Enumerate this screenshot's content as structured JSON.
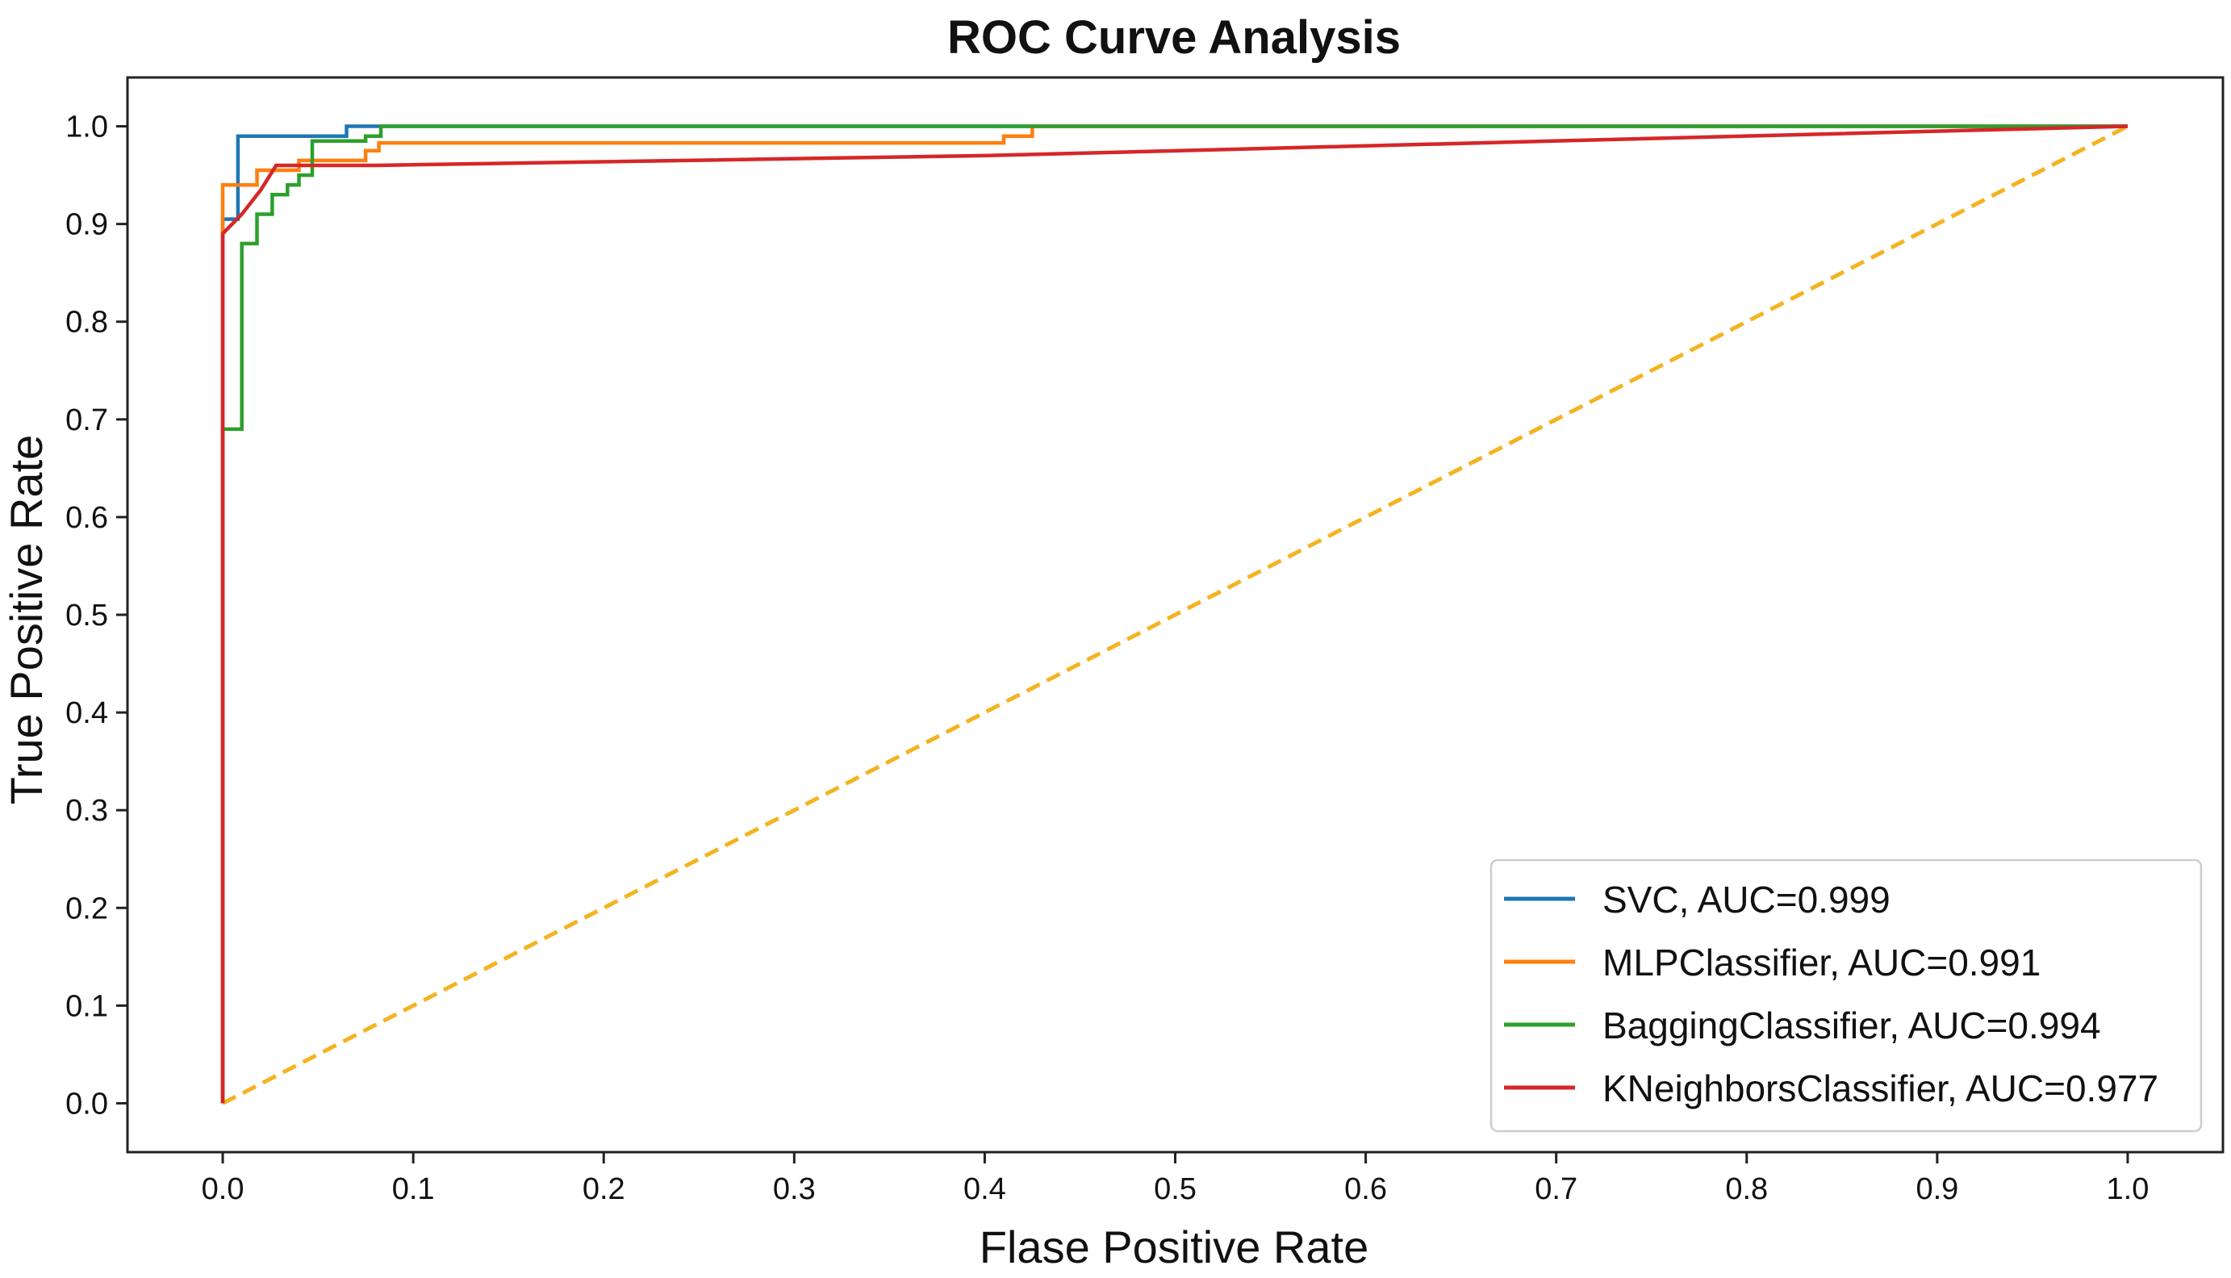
{
  "chart_data": {
    "type": "line",
    "title": "ROC Curve Analysis",
    "xlabel": "Flase Positive Rate",
    "ylabel": "True Positive Rate",
    "xlim": [
      -0.05,
      1.05
    ],
    "ylim": [
      -0.05,
      1.05
    ],
    "xticks": [
      0.0,
      0.1,
      0.2,
      0.3,
      0.4,
      0.5,
      0.6,
      0.7,
      0.8,
      0.9,
      1.0
    ],
    "yticks": [
      0.0,
      0.1,
      0.2,
      0.3,
      0.4,
      0.5,
      0.6,
      0.7,
      0.8,
      0.9,
      1.0
    ],
    "xtick_labels": [
      "0.0",
      "0.1",
      "0.2",
      "0.3",
      "0.4",
      "0.5",
      "0.6",
      "0.7",
      "0.8",
      "0.9",
      "1.0"
    ],
    "ytick_labels": [
      "0.0",
      "0.1",
      "0.2",
      "0.3",
      "0.4",
      "0.5",
      "0.6",
      "0.7",
      "0.8",
      "0.9",
      "1.0"
    ],
    "grid": false,
    "legend_position": "bottom-right",
    "series": [
      {
        "name": "SVC",
        "label": "SVC, AUC=0.999",
        "auc": 0.999,
        "color": "#1f77b4",
        "x": [
          0.0,
          0.0,
          0.008,
          0.008,
          0.065,
          0.065,
          1.0
        ],
        "y": [
          0.0,
          0.905,
          0.905,
          0.99,
          0.99,
          1.0,
          1.0
        ]
      },
      {
        "name": "MLPClassifier",
        "label": "MLPClassifier, AUC=0.991",
        "auc": 0.991,
        "color": "#ff7f0e",
        "x": [
          0.0,
          0.0,
          0.0,
          0.018,
          0.018,
          0.04,
          0.04,
          0.075,
          0.075,
          0.082,
          0.082,
          0.41,
          0.41,
          0.425,
          0.425,
          1.0
        ],
        "y": [
          0.0,
          0.915,
          0.94,
          0.94,
          0.955,
          0.955,
          0.965,
          0.965,
          0.975,
          0.975,
          0.983,
          0.983,
          0.99,
          0.99,
          1.0,
          1.0
        ]
      },
      {
        "name": "BaggingClassifier",
        "label": "BaggingClassifier, AUC=0.994",
        "auc": 0.994,
        "color": "#2ca02c",
        "x": [
          0.0,
          0.0,
          0.0,
          0.0,
          0.01,
          0.01,
          0.018,
          0.018,
          0.026,
          0.026,
          0.034,
          0.034,
          0.04,
          0.04,
          0.047,
          0.047,
          0.075,
          0.075,
          0.083,
          0.083,
          1.0
        ],
        "y": [
          0.0,
          0.4,
          0.6,
          0.69,
          0.69,
          0.88,
          0.88,
          0.91,
          0.91,
          0.93,
          0.93,
          0.94,
          0.94,
          0.95,
          0.95,
          0.985,
          0.985,
          0.99,
          0.99,
          1.0,
          1.0
        ]
      },
      {
        "name": "KNeighborsClassifier",
        "label": "KNeighborsClassifier, AUC=0.977",
        "auc": 0.977,
        "color": "#d62728",
        "x": [
          0.0,
          0.0,
          0.0,
          0.01,
          0.02,
          0.028,
          0.045,
          0.08,
          0.4,
          1.0
        ],
        "y": [
          0.0,
          0.3,
          0.89,
          0.91,
          0.935,
          0.96,
          0.96,
          0.96,
          0.97,
          1.0
        ]
      },
      {
        "name": "Chance",
        "label": "",
        "color": "#f5b321",
        "dashed": true,
        "x": [
          0.0,
          1.0
        ],
        "y": [
          0.0,
          1.0
        ]
      }
    ]
  }
}
